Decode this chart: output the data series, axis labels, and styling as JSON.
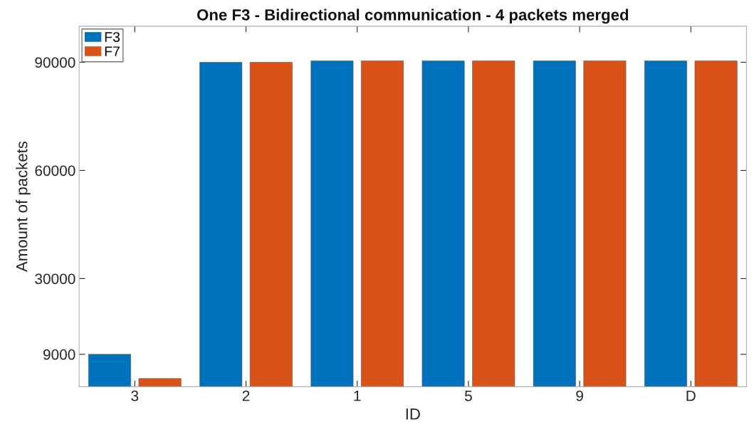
{
  "chart_data": {
    "type": "bar",
    "title": "One F3 - Bidirectional communication - 4 packets merged",
    "xlabel": "ID",
    "ylabel": "Amount of packets",
    "categories": [
      "3",
      "2",
      "1",
      "5",
      "9",
      "D"
    ],
    "series": [
      {
        "name": "F3",
        "color": "#0072bd",
        "values": [
          9000,
          90000,
          90400,
          90400,
          90400,
          90400
        ]
      },
      {
        "name": "F7",
        "color": "#d95319",
        "values": [
          2300,
          90000,
          90400,
          90400,
          90400,
          90400
        ]
      }
    ],
    "ylim": [
      0,
      100000
    ],
    "yticks": [
      9000,
      30000,
      60000,
      90000
    ],
    "grid": false,
    "legend": "top left"
  }
}
